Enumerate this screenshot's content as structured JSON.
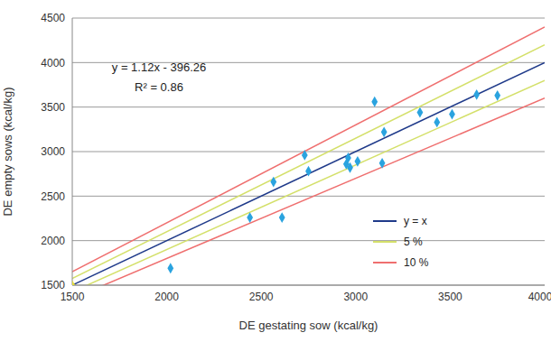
{
  "chart_data": {
    "type": "scatter",
    "x_label": "DE gestating sow (kcal/kg)",
    "y_label": "DE empty sows (kcal/kg)",
    "xlim": [
      1500,
      4000
    ],
    "xticks": [
      1500,
      2000,
      2500,
      3000,
      3500,
      4000
    ],
    "ylim": [
      1500,
      4500
    ],
    "yticks": [
      1500,
      2000,
      2500,
      3000,
      3500,
      4000,
      4500
    ],
    "grid": true,
    "legend": "right",
    "annotations": [
      "y = 1.12x - 396.26",
      "R² = 0.86"
    ],
    "series": [
      {
        "type": "scatter",
        "color": "#2aa3df",
        "marker": "diamond",
        "x": [
          2020,
          2440,
          2610,
          2565,
          2730,
          2750,
          2950,
          2960,
          2970,
          3010,
          3100,
          3150,
          3140,
          3340,
          3430,
          3510,
          3640,
          3750
        ],
        "values": [
          1690,
          2260,
          2260,
          2660,
          2960,
          2780,
          2860,
          2930,
          2820,
          2890,
          3560,
          3220,
          2870,
          3440,
          3330,
          3420,
          3640,
          3630
        ]
      },
      {
        "type": "scatter",
        "color": "#e2dc3c",
        "marker": "triangle",
        "x": [
          1500
        ],
        "values": [
          1500
        ]
      },
      {
        "name": "y = x",
        "type": "line",
        "color": "#1f3a8a",
        "x": [
          1500,
          4000
        ],
        "values": [
          1500,
          4000
        ]
      },
      {
        "name": "5 %",
        "type": "line",
        "color": "#d4e06a",
        "x": [
          1500,
          4000
        ],
        "upper": [
          1575,
          4200
        ],
        "lower": [
          1425,
          3800
        ]
      },
      {
        "name": "10 %",
        "type": "line",
        "color": "#ef6f6f",
        "x": [
          1500,
          4000
        ],
        "upper": [
          1650,
          4400
        ],
        "lower": [
          1350,
          3600
        ]
      }
    ]
  }
}
